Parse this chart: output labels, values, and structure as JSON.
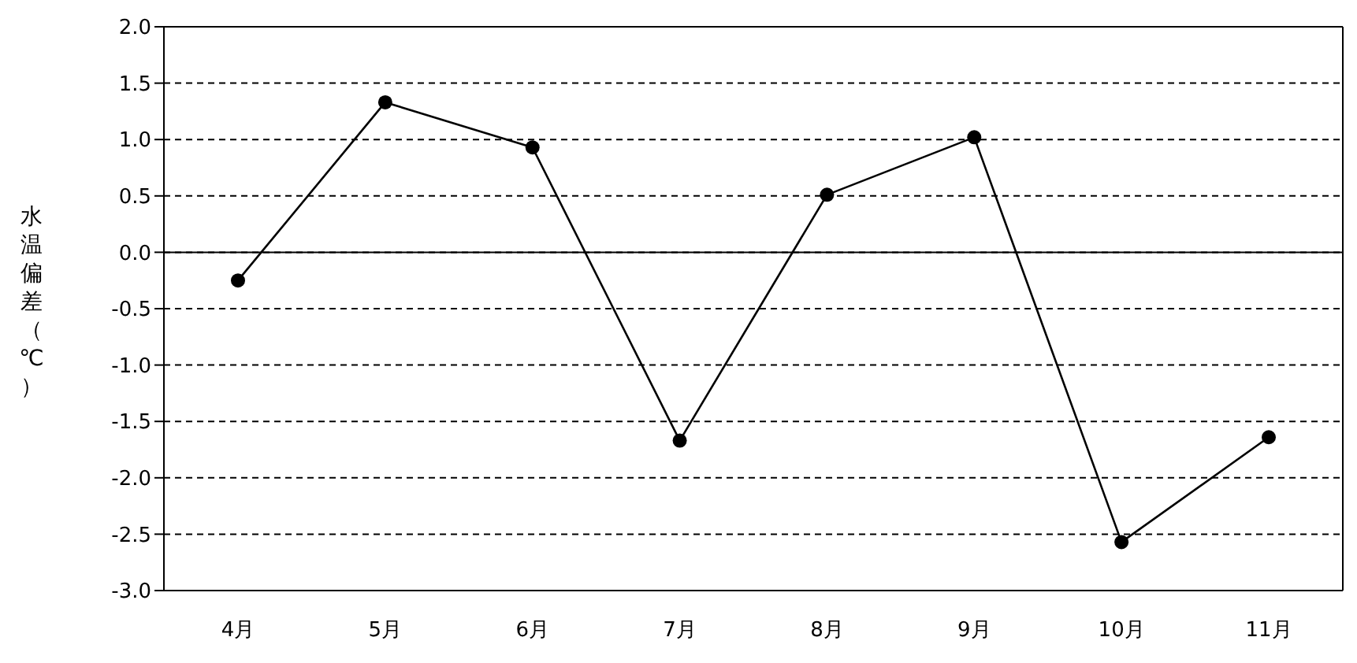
{
  "chart_data": {
    "type": "line",
    "ylabel": "水温偏差（℃）",
    "categories": [
      "4月",
      "5月",
      "6月",
      "7月",
      "8月",
      "9月",
      "10月",
      "11月"
    ],
    "series": [
      {
        "color": "#000000",
        "values": [
          -0.25,
          1.33,
          0.93,
          -1.67,
          0.51,
          1.02,
          -2.57,
          -1.64
        ]
      }
    ],
    "ylim": [
      -3.0,
      2.0
    ],
    "yticks": [
      {
        "value": -3,
        "label": "-3.0"
      },
      {
        "value": -2.5,
        "label": "-2.5"
      },
      {
        "value": -2,
        "label": "-2.0"
      },
      {
        "value": -1.5,
        "label": "-1.5"
      },
      {
        "value": -1,
        "label": "-1.0"
      },
      {
        "value": -0.5,
        "label": "-0.5"
      },
      {
        "value": 0,
        "label": "0.0"
      },
      {
        "value": 0.5,
        "label": "0.5"
      },
      {
        "value": 1,
        "label": "1.0"
      },
      {
        "value": 1.5,
        "label": "1.5"
      },
      {
        "value": 2,
        "label": "2.0"
      }
    ],
    "grid": "y",
    "marker": "circle",
    "ref_lines": [
      {
        "axis": "y",
        "value": 0,
        "color": "#000000"
      }
    ]
  }
}
